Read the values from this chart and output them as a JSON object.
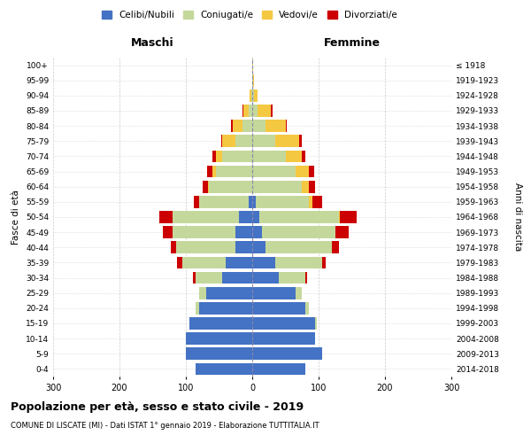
{
  "age_groups": [
    "0-4",
    "5-9",
    "10-14",
    "15-19",
    "20-24",
    "25-29",
    "30-34",
    "35-39",
    "40-44",
    "45-49",
    "50-54",
    "55-59",
    "60-64",
    "65-69",
    "70-74",
    "75-79",
    "80-84",
    "85-89",
    "90-94",
    "95-99",
    "100+"
  ],
  "birth_years": [
    "2014-2018",
    "2009-2013",
    "2004-2008",
    "1999-2003",
    "1994-1998",
    "1989-1993",
    "1984-1988",
    "1979-1983",
    "1974-1978",
    "1969-1973",
    "1964-1968",
    "1959-1963",
    "1954-1958",
    "1949-1953",
    "1944-1948",
    "1939-1943",
    "1934-1938",
    "1929-1933",
    "1924-1928",
    "1919-1923",
    "≤ 1918"
  ],
  "male_celibi": [
    85,
    100,
    100,
    95,
    80,
    70,
    45,
    40,
    25,
    25,
    20,
    5,
    0,
    0,
    0,
    0,
    0,
    0,
    0,
    0,
    0
  ],
  "male_coniugati": [
    0,
    0,
    0,
    0,
    5,
    10,
    40,
    65,
    90,
    95,
    100,
    75,
    65,
    55,
    45,
    25,
    15,
    5,
    2,
    0,
    0
  ],
  "male_vedovi": [
    0,
    0,
    0,
    0,
    0,
    0,
    0,
    0,
    0,
    0,
    0,
    0,
    2,
    5,
    10,
    20,
    15,
    8,
    2,
    0,
    0
  ],
  "male_divorziati": [
    0,
    0,
    0,
    0,
    0,
    0,
    5,
    8,
    8,
    15,
    20,
    8,
    8,
    8,
    5,
    2,
    2,
    2,
    0,
    0,
    0
  ],
  "female_celibi": [
    80,
    105,
    95,
    95,
    80,
    65,
    40,
    35,
    20,
    15,
    10,
    5,
    0,
    0,
    0,
    0,
    0,
    0,
    0,
    0,
    0
  ],
  "female_coniugati": [
    0,
    0,
    0,
    2,
    5,
    10,
    40,
    70,
    100,
    110,
    120,
    80,
    75,
    65,
    50,
    35,
    20,
    8,
    3,
    1,
    0
  ],
  "female_vedovi": [
    0,
    0,
    0,
    0,
    0,
    0,
    0,
    0,
    0,
    0,
    2,
    5,
    10,
    20,
    25,
    35,
    30,
    20,
    5,
    2,
    1
  ],
  "female_divorziati": [
    0,
    0,
    0,
    0,
    0,
    0,
    2,
    5,
    10,
    20,
    25,
    15,
    10,
    8,
    5,
    5,
    2,
    2,
    0,
    0,
    0
  ],
  "colors": {
    "celibi": "#4472c4",
    "coniugati": "#c5d89c",
    "vedovi": "#f5c842",
    "divorziati": "#cc0000"
  },
  "title": "Popolazione per età, sesso e stato civile - 2019",
  "subtitle": "COMUNE DI LISCATE (MI) - Dati ISTAT 1° gennaio 2019 - Elaborazione TUTTITALIA.IT",
  "xlabel_maschi": "Maschi",
  "xlabel_femmine": "Femmine",
  "ylabel_left": "Fasce di età",
  "ylabel_right": "Anni di nascita",
  "xlim": 300
}
